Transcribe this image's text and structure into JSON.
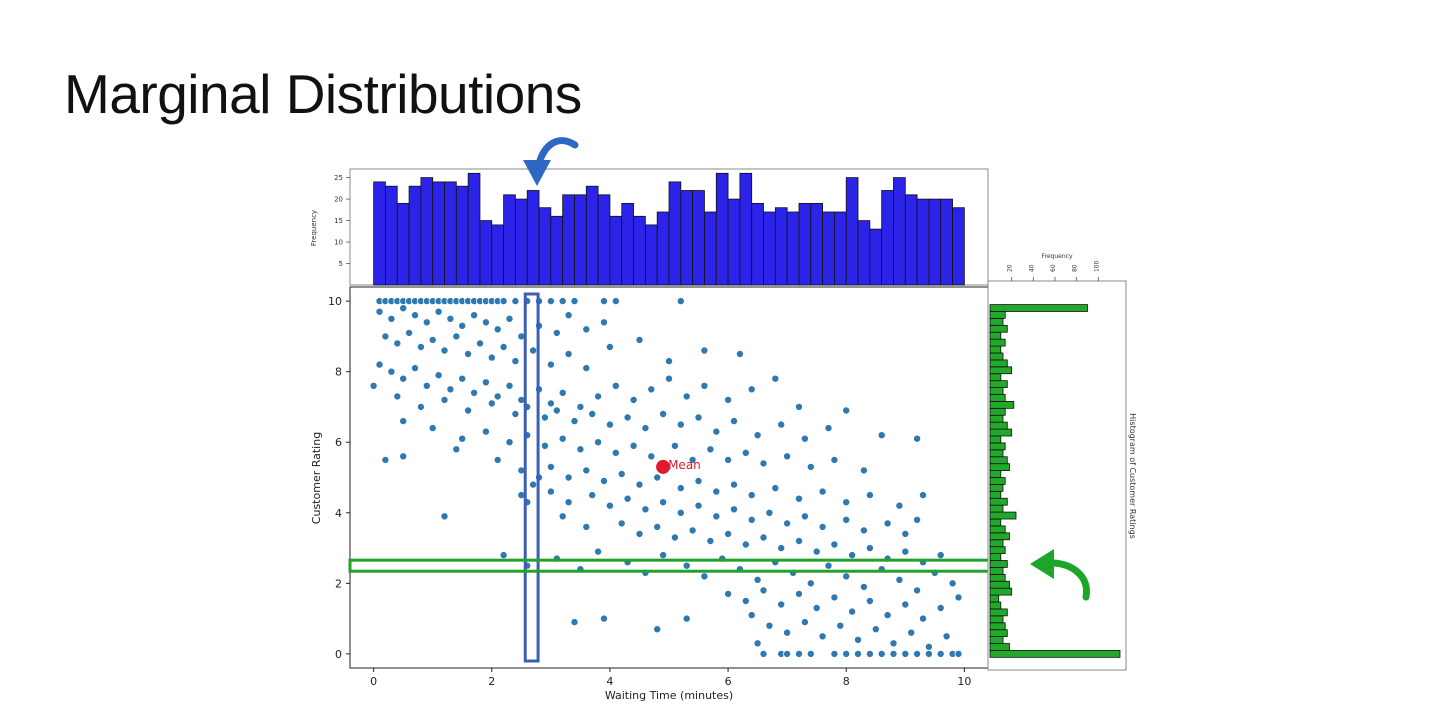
{
  "slide": {
    "title": "Marginal Distributions"
  },
  "colors": {
    "top_hist_fill": "#2b24e8",
    "right_hist_fill": "#22a82b",
    "scatter_point": "#2e79b0",
    "mean_point": "#e01a2a",
    "highlight_vertical": "#3b5fb5",
    "highlight_horizontal": "#21a32b",
    "arrow_blue": "#2f67c4",
    "arrow_green": "#1da52a"
  },
  "chart_data": [
    {
      "id": "scatter",
      "type": "scatter",
      "xlabel": "Waiting Time (minutes)",
      "ylabel": "Customer Rating",
      "xlim": [
        -0.4,
        10.4
      ],
      "ylim": [
        -0.4,
        10.4
      ],
      "xticks": [
        "0",
        "2",
        "4",
        "6",
        "8",
        "10"
      ],
      "yticks": [
        "0",
        "2",
        "4",
        "6",
        "8",
        "10"
      ],
      "mean_point": {
        "x": 4.9,
        "y": 5.3,
        "label": "Mean"
      },
      "highlight_x_band": [
        2.6,
        2.75
      ],
      "highlight_y_band": [
        2.4,
        2.6
      ],
      "points": [
        [
          0.1,
          10
        ],
        [
          0.2,
          10
        ],
        [
          0.3,
          10
        ],
        [
          0.4,
          10
        ],
        [
          0.5,
          10
        ],
        [
          0.6,
          10
        ],
        [
          0.7,
          10
        ],
        [
          0.8,
          10
        ],
        [
          0.9,
          10
        ],
        [
          1.0,
          10
        ],
        [
          1.1,
          10
        ],
        [
          1.2,
          10
        ],
        [
          1.3,
          10
        ],
        [
          1.4,
          10
        ],
        [
          1.5,
          10
        ],
        [
          1.6,
          10
        ],
        [
          1.7,
          10
        ],
        [
          1.8,
          10
        ],
        [
          1.9,
          10
        ],
        [
          2.0,
          10
        ],
        [
          2.1,
          10
        ],
        [
          2.2,
          10
        ],
        [
          2.4,
          10
        ],
        [
          2.6,
          10
        ],
        [
          2.8,
          10
        ],
        [
          3.0,
          10
        ],
        [
          3.2,
          10
        ],
        [
          3.4,
          10
        ],
        [
          3.9,
          10
        ],
        [
          4.1,
          10
        ],
        [
          5.2,
          10
        ],
        [
          0.1,
          9.7
        ],
        [
          0.3,
          9.5
        ],
        [
          0.5,
          9.8
        ],
        [
          0.7,
          9.6
        ],
        [
          0.9,
          9.4
        ],
        [
          1.1,
          9.7
        ],
        [
          1.3,
          9.5
        ],
        [
          1.5,
          9.3
        ],
        [
          1.7,
          9.6
        ],
        [
          1.9,
          9.4
        ],
        [
          2.1,
          9.2
        ],
        [
          2.3,
          9.5
        ],
        [
          2.5,
          9.0
        ],
        [
          2.8,
          9.3
        ],
        [
          3.1,
          9.1
        ],
        [
          3.3,
          9.6
        ],
        [
          3.6,
          9.2
        ],
        [
          3.9,
          9.4
        ],
        [
          0.2,
          9.0
        ],
        [
          0.4,
          8.8
        ],
        [
          0.6,
          9.1
        ],
        [
          0.8,
          8.7
        ],
        [
          1.0,
          8.9
        ],
        [
          1.2,
          8.6
        ],
        [
          1.4,
          9.0
        ],
        [
          1.6,
          8.5
        ],
        [
          1.8,
          8.8
        ],
        [
          2.0,
          8.4
        ],
        [
          2.2,
          8.7
        ],
        [
          2.4,
          8.3
        ],
        [
          2.7,
          8.6
        ],
        [
          3.0,
          8.2
        ],
        [
          3.3,
          8.5
        ],
        [
          3.6,
          8.1
        ],
        [
          4.0,
          8.7
        ],
        [
          4.5,
          8.9
        ],
        [
          5.0,
          8.3
        ],
        [
          5.6,
          8.6
        ],
        [
          6.2,
          8.5
        ],
        [
          0.1,
          8.2
        ],
        [
          0.3,
          8.0
        ],
        [
          0.5,
          7.8
        ],
        [
          0.7,
          8.1
        ],
        [
          0.9,
          7.6
        ],
        [
          1.1,
          7.9
        ],
        [
          1.3,
          7.5
        ],
        [
          1.5,
          7.8
        ],
        [
          1.7,
          7.4
        ],
        [
          1.9,
          7.7
        ],
        [
          2.1,
          7.3
        ],
        [
          2.3,
          7.6
        ],
        [
          2.5,
          7.2
        ],
        [
          2.8,
          7.5
        ],
        [
          3.0,
          7.1
        ],
        [
          3.2,
          7.4
        ],
        [
          3.5,
          7.0
        ],
        [
          3.8,
          7.3
        ],
        [
          4.1,
          7.6
        ],
        [
          4.4,
          7.2
        ],
        [
          4.7,
          7.5
        ],
        [
          5.0,
          7.8
        ],
        [
          5.3,
          7.3
        ],
        [
          5.6,
          7.6
        ],
        [
          6.0,
          7.2
        ],
        [
          6.4,
          7.5
        ],
        [
          6.8,
          7.8
        ],
        [
          7.2,
          7.0
        ],
        [
          8.0,
          6.9
        ],
        [
          0.0,
          7.6
        ],
        [
          0.4,
          7.3
        ],
        [
          0.8,
          7.0
        ],
        [
          1.2,
          7.2
        ],
        [
          1.6,
          6.9
        ],
        [
          2.0,
          7.1
        ],
        [
          2.4,
          6.8
        ],
        [
          2.6,
          7.0
        ],
        [
          2.9,
          6.7
        ],
        [
          3.1,
          6.9
        ],
        [
          3.4,
          6.6
        ],
        [
          3.7,
          6.8
        ],
        [
          4.0,
          6.5
        ],
        [
          4.3,
          6.7
        ],
        [
          4.6,
          6.4
        ],
        [
          4.9,
          6.8
        ],
        [
          5.2,
          6.5
        ],
        [
          5.5,
          6.7
        ],
        [
          5.8,
          6.3
        ],
        [
          6.1,
          6.6
        ],
        [
          6.5,
          6.2
        ],
        [
          6.9,
          6.5
        ],
        [
          7.3,
          6.1
        ],
        [
          7.7,
          6.4
        ],
        [
          0.5,
          6.6
        ],
        [
          1.0,
          6.4
        ],
        [
          1.5,
          6.1
        ],
        [
          1.9,
          6.3
        ],
        [
          2.3,
          6.0
        ],
        [
          2.6,
          6.2
        ],
        [
          2.9,
          5.9
        ],
        [
          3.2,
          6.1
        ],
        [
          3.5,
          5.8
        ],
        [
          3.8,
          6.0
        ],
        [
          4.1,
          5.7
        ],
        [
          4.4,
          5.9
        ],
        [
          4.7,
          5.6
        ],
        [
          5.1,
          5.9
        ],
        [
          5.4,
          5.5
        ],
        [
          5.7,
          5.8
        ],
        [
          6.0,
          5.5
        ],
        [
          6.3,
          5.7
        ],
        [
          6.6,
          5.4
        ],
        [
          7.0,
          5.6
        ],
        [
          7.4,
          5.3
        ],
        [
          7.8,
          5.5
        ],
        [
          8.3,
          5.2
        ],
        [
          8.6,
          6.2
        ],
        [
          9.2,
          6.1
        ],
        [
          0.2,
          5.5
        ],
        [
          0.5,
          5.6
        ],
        [
          1.4,
          5.8
        ],
        [
          2.1,
          5.5
        ],
        [
          2.5,
          5.2
        ],
        [
          2.8,
          5.0
        ],
        [
          3.0,
          5.3
        ],
        [
          3.3,
          5.0
        ],
        [
          3.6,
          5.2
        ],
        [
          3.9,
          4.9
        ],
        [
          4.2,
          5.1
        ],
        [
          4.5,
          4.8
        ],
        [
          4.8,
          5.0
        ],
        [
          5.2,
          4.7
        ],
        [
          5.5,
          4.9
        ],
        [
          5.8,
          4.6
        ],
        [
          6.1,
          4.8
        ],
        [
          6.4,
          4.5
        ],
        [
          6.8,
          4.7
        ],
        [
          7.2,
          4.4
        ],
        [
          7.6,
          4.6
        ],
        [
          8.0,
          4.3
        ],
        [
          8.4,
          4.5
        ],
        [
          8.9,
          4.2
        ],
        [
          9.3,
          4.5
        ],
        [
          2.5,
          4.5
        ],
        [
          2.7,
          4.8
        ],
        [
          3.0,
          4.6
        ],
        [
          3.3,
          4.3
        ],
        [
          3.7,
          4.5
        ],
        [
          4.0,
          4.2
        ],
        [
          4.3,
          4.4
        ],
        [
          4.6,
          4.1
        ],
        [
          4.9,
          4.3
        ],
        [
          5.2,
          4.0
        ],
        [
          5.5,
          4.2
        ],
        [
          5.8,
          3.9
        ],
        [
          6.1,
          4.1
        ],
        [
          6.4,
          3.8
        ],
        [
          6.7,
          4.0
        ],
        [
          7.0,
          3.7
        ],
        [
          7.3,
          3.9
        ],
        [
          7.6,
          3.6
        ],
        [
          8.0,
          3.8
        ],
        [
          8.3,
          3.5
        ],
        [
          8.7,
          3.7
        ],
        [
          9.0,
          3.4
        ],
        [
          9.2,
          3.8
        ],
        [
          1.2,
          3.9
        ],
        [
          2.6,
          4.3
        ],
        [
          3.2,
          3.9
        ],
        [
          3.6,
          3.6
        ],
        [
          4.2,
          3.7
        ],
        [
          4.5,
          3.4
        ],
        [
          4.8,
          3.6
        ],
        [
          5.1,
          3.3
        ],
        [
          5.4,
          3.5
        ],
        [
          5.7,
          3.2
        ],
        [
          6.0,
          3.4
        ],
        [
          6.3,
          3.1
        ],
        [
          6.6,
          3.3
        ],
        [
          6.9,
          3.0
        ],
        [
          7.2,
          3.2
        ],
        [
          7.5,
          2.9
        ],
        [
          7.8,
          3.1
        ],
        [
          8.1,
          2.8
        ],
        [
          8.4,
          3.0
        ],
        [
          8.7,
          2.7
        ],
        [
          9.0,
          2.9
        ],
        [
          9.3,
          2.6
        ],
        [
          9.6,
          2.8
        ],
        [
          2.2,
          2.8
        ],
        [
          2.6,
          2.5
        ],
        [
          3.1,
          2.7
        ],
        [
          3.5,
          2.4
        ],
        [
          3.8,
          2.9
        ],
        [
          4.3,
          2.6
        ],
        [
          4.6,
          2.3
        ],
        [
          4.9,
          2.8
        ],
        [
          5.3,
          2.5
        ],
        [
          5.6,
          2.2
        ],
        [
          5.9,
          2.7
        ],
        [
          6.2,
          2.4
        ],
        [
          6.5,
          2.1
        ],
        [
          6.8,
          2.6
        ],
        [
          7.1,
          2.3
        ],
        [
          7.4,
          2.0
        ],
        [
          7.7,
          2.5
        ],
        [
          8.0,
          2.2
        ],
        [
          8.3,
          1.9
        ],
        [
          8.6,
          2.4
        ],
        [
          8.9,
          2.1
        ],
        [
          9.2,
          1.8
        ],
        [
          9.5,
          2.3
        ],
        [
          9.8,
          2.0
        ],
        [
          6.0,
          1.7
        ],
        [
          6.3,
          1.5
        ],
        [
          6.6,
          1.8
        ],
        [
          6.9,
          1.4
        ],
        [
          7.2,
          1.7
        ],
        [
          7.5,
          1.3
        ],
        [
          7.8,
          1.6
        ],
        [
          8.1,
          1.2
        ],
        [
          8.4,
          1.5
        ],
        [
          8.7,
          1.1
        ],
        [
          9.0,
          1.4
        ],
        [
          9.3,
          1.0
        ],
        [
          9.6,
          1.3
        ],
        [
          9.9,
          1.6
        ],
        [
          3.4,
          0.9
        ],
        [
          3.9,
          1.0
        ],
        [
          4.8,
          0.7
        ],
        [
          5.3,
          1.0
        ],
        [
          6.4,
          1.1
        ],
        [
          6.7,
          0.8
        ],
        [
          7.0,
          0.6
        ],
        [
          7.3,
          0.9
        ],
        [
          7.6,
          0.5
        ],
        [
          7.9,
          0.8
        ],
        [
          8.2,
          0.4
        ],
        [
          8.5,
          0.7
        ],
        [
          8.8,
          0.3
        ],
        [
          9.1,
          0.6
        ],
        [
          9.4,
          0.2
        ],
        [
          9.7,
          0.5
        ],
        [
          6.5,
          0.3
        ],
        [
          6.6,
          0
        ],
        [
          6.9,
          0
        ],
        [
          7.0,
          0
        ],
        [
          7.2,
          0
        ],
        [
          7.4,
          0
        ],
        [
          7.8,
          0
        ],
        [
          8.0,
          0
        ],
        [
          8.2,
          0
        ],
        [
          8.4,
          0
        ],
        [
          8.6,
          0
        ],
        [
          8.8,
          0
        ],
        [
          9.0,
          0
        ],
        [
          9.2,
          0
        ],
        [
          9.4,
          0
        ],
        [
          9.6,
          0
        ],
        [
          9.8,
          0
        ],
        [
          9.9,
          0
        ]
      ]
    },
    {
      "id": "top-histogram",
      "type": "bar",
      "ylabel": "Frequency",
      "ylim": [
        0,
        27
      ],
      "yticks": [
        "5",
        "10",
        "15",
        "20",
        "25"
      ],
      "values": [
        24,
        23,
        19,
        23,
        25,
        24,
        24,
        23,
        26,
        15,
        14,
        21,
        20,
        22,
        18,
        16,
        21,
        21,
        23,
        21,
        16,
        19,
        16,
        14,
        17,
        24,
        22,
        22,
        17,
        26,
        20,
        26,
        19,
        17,
        18,
        17,
        19,
        19,
        17,
        17,
        25,
        15,
        13,
        22,
        25,
        21,
        20,
        20,
        20,
        18
      ]
    },
    {
      "id": "right-histogram",
      "type": "bar",
      "orientation": "horizontal",
      "title": "Histogram of Customer Ratings",
      "xlabel": "Frequency",
      "xlim": [
        0,
        120
      ],
      "xticks": [
        "20",
        "40",
        "60",
        "80",
        "100"
      ],
      "values": [
        120,
        18,
        12,
        16,
        14,
        12,
        16,
        10,
        8,
        20,
        18,
        14,
        12,
        16,
        10,
        14,
        12,
        18,
        14,
        10,
        24,
        12,
        16,
        10,
        12,
        14,
        10,
        18,
        16,
        12,
        14,
        10,
        20,
        16,
        12,
        14,
        22,
        14,
        12,
        16,
        10,
        20,
        16,
        12,
        10,
        14,
        10,
        16,
        12,
        14,
        90
      ]
    }
  ]
}
